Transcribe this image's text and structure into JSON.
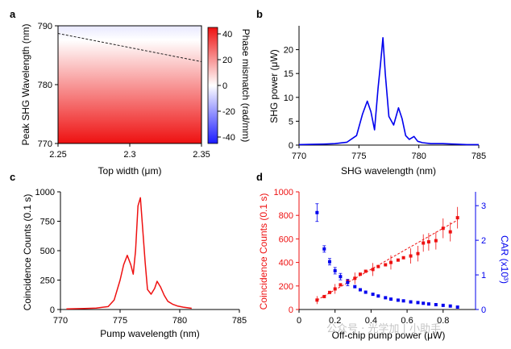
{
  "chart_data": [
    {
      "panel": "a",
      "type": "heatmap",
      "xlabel": "Top width (μm)",
      "ylabel": "Peak SHG Wavelength (nm)",
      "xlim": [
        2.25,
        2.35
      ],
      "ylim": [
        770,
        790
      ],
      "xticks": [
        "2.25",
        "2.3",
        "2.35"
      ],
      "yticks": [
        "770",
        "780",
        "790"
      ],
      "xtick_values": [
        2.25,
        2.3,
        2.35
      ],
      "ytick_values": [
        770,
        780,
        790
      ],
      "phase_matching_line": [
        [
          2.25,
          788.7
        ],
        [
          2.35,
          783.9
        ]
      ],
      "colorbar": {
        "label": "Phase mismatch (rad/mm)",
        "range": [
          -45,
          45
        ],
        "ticks": [
          "40",
          "20",
          "0",
          "-20",
          "-40"
        ],
        "tick_values": [
          40,
          20,
          0,
          -20,
          -40
        ],
        "low_color": "#1a1aff",
        "mid_color": "#ffffff",
        "high_color": "#ee1111"
      }
    },
    {
      "panel": "b",
      "type": "line",
      "xlabel": "SHG wavelength (nm)",
      "ylabel": "SHG power (μW)",
      "xlim": [
        770,
        785
      ],
      "ylim": [
        0,
        25
      ],
      "xticks": [
        "770",
        "775",
        "780",
        "785"
      ],
      "yticks": [
        "0",
        "5",
        "10",
        "15",
        "20"
      ],
      "xtick_values": [
        770,
        775,
        780,
        785
      ],
      "ytick_values": [
        0,
        5,
        10,
        15,
        20
      ],
      "color": "#0000ee",
      "x": [
        770,
        772,
        773,
        774,
        774.8,
        775.3,
        775.7,
        776,
        776.3,
        776.6,
        776.8,
        777,
        777.2,
        777.5,
        777.9,
        778.3,
        778.6,
        778.9,
        779.2,
        779.6,
        779.9,
        780.3,
        781,
        782,
        783,
        784,
        785
      ],
      "values": [
        0.1,
        0.2,
        0.3,
        0.6,
        2.0,
        6.5,
        9.2,
        7.0,
        3.2,
        12.0,
        17.0,
        22.5,
        15.0,
        6.0,
        4.2,
        7.8,
        5.5,
        2.0,
        1.2,
        1.8,
        0.8,
        0.5,
        0.3,
        0.3,
        0.2,
        0.1,
        0.1
      ]
    },
    {
      "panel": "c",
      "type": "line",
      "xlabel": "Pump wavelength (nm)",
      "ylabel": "Coincidence Counts (0.1 s)",
      "xlim": [
        770,
        785
      ],
      "ylim": [
        0,
        1000
      ],
      "xticks": [
        "770",
        "775",
        "780",
        "785"
      ],
      "yticks": [
        "0",
        "250",
        "500",
        "750",
        "1000"
      ],
      "xtick_values": [
        770,
        775,
        780,
        785
      ],
      "ytick_values": [
        0,
        250,
        500,
        750,
        1000
      ],
      "color": "#ee1111",
      "x": [
        770.5,
        772,
        773,
        774,
        774.5,
        775,
        775.3,
        775.6,
        775.9,
        776.1,
        776.3,
        776.5,
        776.7,
        776.9,
        777.1,
        777.3,
        777.6,
        777.9,
        778.1,
        778.4,
        778.7,
        779,
        779.4,
        779.8,
        780.3,
        781
      ],
      "values": [
        5,
        8,
        12,
        25,
        80,
        250,
        380,
        460,
        380,
        300,
        500,
        880,
        950,
        680,
        400,
        170,
        130,
        180,
        240,
        190,
        120,
        70,
        45,
        30,
        20,
        10
      ]
    },
    {
      "panel": "d",
      "type": "scatter",
      "xlabel": "Off-chip pump power (μW)",
      "xlim": [
        0,
        0.98
      ],
      "xticks": [
        "0",
        "0.2",
        "0.4",
        "0.6",
        "0.8"
      ],
      "xtick_values": [
        0,
        0.2,
        0.4,
        0.6,
        0.8
      ],
      "series": [
        {
          "name": "Coincidence Counts",
          "axis": "left",
          "ylabel": "Coincidence Counts (0.1 s)",
          "ylim": [
            0,
            1000
          ],
          "yticks": [
            "0",
            "200",
            "400",
            "600",
            "800",
            "1000"
          ],
          "ytick_values": [
            0,
            200,
            400,
            600,
            800,
            1000
          ],
          "color": "#ee1111",
          "x": [
            0.1,
            0.14,
            0.17,
            0.2,
            0.23,
            0.27,
            0.31,
            0.34,
            0.37,
            0.41,
            0.44,
            0.48,
            0.51,
            0.55,
            0.58,
            0.62,
            0.66,
            0.69,
            0.72,
            0.76,
            0.8,
            0.84,
            0.88
          ],
          "values": [
            80,
            110,
            145,
            175,
            210,
            240,
            265,
            300,
            325,
            340,
            365,
            380,
            400,
            420,
            440,
            455,
            475,
            565,
            575,
            585,
            690,
            660,
            780
          ],
          "fit": [
            [
              0.1,
              80
            ],
            [
              0.88,
              760
            ]
          ]
        },
        {
          "name": "CAR",
          "axis": "right",
          "ylabel": "CAR (x10³)",
          "ylim": [
            0,
            3.4
          ],
          "yticks": [
            "0",
            "1",
            "2",
            "3"
          ],
          "ytick_values": [
            0,
            1,
            2,
            3
          ],
          "color": "#0000ee",
          "x": [
            0.1,
            0.14,
            0.17,
            0.2,
            0.23,
            0.27,
            0.31,
            0.34,
            0.37,
            0.41,
            0.44,
            0.48,
            0.51,
            0.55,
            0.58,
            0.62,
            0.66,
            0.69,
            0.72,
            0.76,
            0.8,
            0.84,
            0.88
          ],
          "values": [
            2.8,
            1.75,
            1.38,
            1.12,
            0.95,
            0.78,
            0.66,
            0.57,
            0.5,
            0.44,
            0.39,
            0.34,
            0.3,
            0.27,
            0.25,
            0.22,
            0.2,
            0.18,
            0.16,
            0.14,
            0.12,
            0.1,
            0.07
          ]
        }
      ]
    }
  ],
  "panel_labels": [
    "a",
    "b",
    "c",
    "d"
  ],
  "watermark": "公众号 · 光学加 | 小助手"
}
